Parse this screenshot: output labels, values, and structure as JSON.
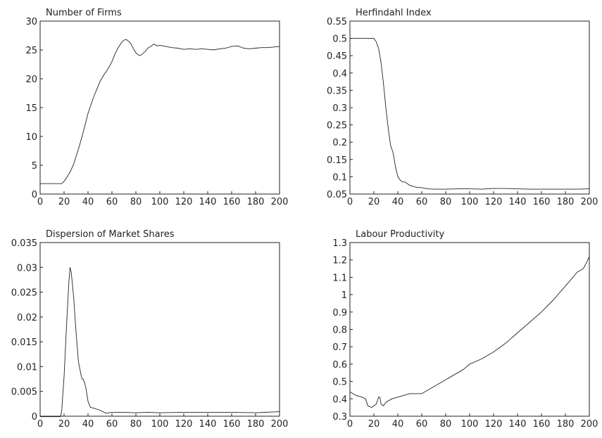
{
  "chart_data": [
    {
      "type": "line",
      "title": "Number of Firms",
      "xlabel": "",
      "ylabel": "",
      "xlim": [
        0,
        200
      ],
      "ylim": [
        0,
        30
      ],
      "xticks": [
        0,
        20,
        40,
        60,
        80,
        100,
        120,
        140,
        160,
        180,
        200
      ],
      "xtick_labels": [
        "0",
        "20",
        "40",
        "60",
        "80",
        "100",
        "120",
        "140",
        "160",
        "180",
        "200"
      ],
      "yticks": [
        0,
        5,
        10,
        15,
        20,
        25,
        30
      ],
      "ytick_labels": [
        "0",
        "5",
        "10",
        "15",
        "20",
        "25",
        "30"
      ],
      "grid": false,
      "series": [
        {
          "x": [
            0,
            5,
            10,
            15,
            18,
            20,
            22,
            25,
            28,
            30,
            33,
            35,
            38,
            40,
            43,
            45,
            48,
            50,
            53,
            55,
            58,
            60,
            63,
            65,
            68,
            70,
            72,
            74,
            76,
            78,
            80,
            83,
            85,
            88,
            90,
            93,
            95,
            98,
            100,
            105,
            110,
            115,
            120,
            125,
            130,
            135,
            140,
            145,
            150,
            155,
            160,
            165,
            170,
            175,
            180,
            185,
            190,
            195,
            200
          ],
          "y": [
            1.8,
            1.8,
            1.8,
            1.8,
            1.8,
            2.2,
            2.8,
            3.8,
            5.2,
            6.5,
            8.5,
            10,
            12.3,
            14,
            15.8,
            17,
            18.5,
            19.5,
            20.6,
            21.2,
            22.2,
            23,
            24.5,
            25.3,
            26.3,
            26.7,
            26.8,
            26.5,
            26,
            25.2,
            24.5,
            24,
            24.2,
            24.8,
            25.3,
            25.7,
            26,
            25.7,
            25.8,
            25.6,
            25.4,
            25.3,
            25.1,
            25.2,
            25.1,
            25.2,
            25.1,
            25,
            25.2,
            25.3,
            25.6,
            25.7,
            25.3,
            25.2,
            25.3,
            25.4,
            25.4,
            25.5,
            25.6
          ]
        }
      ]
    },
    {
      "type": "line",
      "title": "Herfindahl Index",
      "xlabel": "",
      "ylabel": "",
      "xlim": [
        0,
        200
      ],
      "ylim": [
        0.05,
        0.55
      ],
      "xticks": [
        0,
        20,
        40,
        60,
        80,
        100,
        120,
        140,
        160,
        180,
        200
      ],
      "xtick_labels": [
        "0",
        "20",
        "40",
        "60",
        "80",
        "100",
        "120",
        "140",
        "160",
        "180",
        "200"
      ],
      "yticks": [
        0.05,
        0.1,
        0.15,
        0.2,
        0.25,
        0.3,
        0.35,
        0.4,
        0.45,
        0.5,
        0.55
      ],
      "ytick_labels": [
        "0.05",
        "0.1",
        "0.15",
        "0.2",
        "0.25",
        "0.3",
        "0.35",
        "0.4",
        "0.45",
        "0.5",
        "0.55"
      ],
      "grid": false,
      "series": [
        {
          "x": [
            0,
            5,
            10,
            15,
            18,
            20,
            22,
            24,
            26,
            28,
            30,
            32,
            34,
            36,
            38,
            40,
            42,
            44,
            46,
            48,
            50,
            55,
            60,
            65,
            70,
            80,
            90,
            100,
            110,
            120,
            130,
            140,
            150,
            160,
            170,
            180,
            190,
            200
          ],
          "y": [
            0.5,
            0.5,
            0.5,
            0.5,
            0.5,
            0.5,
            0.49,
            0.47,
            0.43,
            0.37,
            0.3,
            0.24,
            0.19,
            0.17,
            0.13,
            0.1,
            0.09,
            0.085,
            0.085,
            0.08,
            0.075,
            0.07,
            0.068,
            0.065,
            0.064,
            0.064,
            0.065,
            0.065,
            0.064,
            0.066,
            0.066,
            0.065,
            0.064,
            0.064,
            0.064,
            0.064,
            0.064,
            0.065
          ]
        }
      ]
    },
    {
      "type": "line",
      "title": "Dispersion of Market Shares",
      "xlabel": "",
      "ylabel": "",
      "xlim": [
        0,
        200
      ],
      "ylim": [
        0,
        0.035
      ],
      "xticks": [
        0,
        20,
        40,
        60,
        80,
        100,
        120,
        140,
        160,
        180,
        200
      ],
      "xtick_labels": [
        "0",
        "20",
        "40",
        "60",
        "80",
        "100",
        "120",
        "140",
        "160",
        "180",
        "200"
      ],
      "yticks": [
        0,
        0.005,
        0.01,
        0.015,
        0.02,
        0.025,
        0.03,
        0.035
      ],
      "ytick_labels": [
        "0",
        "0.005",
        "0.01",
        "0.015",
        "0.02",
        "0.025",
        "0.03",
        "0.035"
      ],
      "grid": false,
      "series": [
        {
          "x": [
            0,
            5,
            10,
            15,
            17,
            18,
            20,
            22,
            24,
            25,
            26,
            28,
            30,
            32,
            34,
            35,
            36,
            38,
            40,
            42,
            45,
            50,
            55,
            60,
            70,
            80,
            90,
            100,
            120,
            140,
            160,
            180,
            200
          ],
          "y": [
            -0.0001,
            -0.0001,
            -0.0001,
            -0.0001,
            -0.0001,
            0.001,
            0.008,
            0.018,
            0.027,
            0.03,
            0.029,
            0.024,
            0.017,
            0.011,
            0.0085,
            0.0075,
            0.0075,
            0.006,
            0.003,
            0.0018,
            0.0016,
            0.0012,
            0.0006,
            0.0008,
            0.0008,
            0.0007,
            0.0008,
            0.0007,
            0.0008,
            0.0008,
            0.0008,
            0.0007,
            0.0009
          ]
        }
      ]
    },
    {
      "type": "line",
      "title": "Labour Productivity",
      "xlabel": "",
      "ylabel": "",
      "xlim": [
        0,
        200
      ],
      "ylim": [
        0.3,
        1.3
      ],
      "xticks": [
        0,
        20,
        40,
        60,
        80,
        100,
        120,
        140,
        160,
        180,
        200
      ],
      "xtick_labels": [
        "0",
        "20",
        "40",
        "60",
        "80",
        "100",
        "120",
        "140",
        "160",
        "180",
        "200"
      ],
      "yticks": [
        0.3,
        0.4,
        0.5,
        0.6,
        0.7,
        0.8,
        0.9,
        1,
        1.1,
        1.2,
        1.3
      ],
      "ytick_labels": [
        "0.3",
        "0.4",
        "0.5",
        "0.6",
        "0.7",
        "0.8",
        "0.9",
        "1",
        "1.1",
        "1.2",
        "1.3"
      ],
      "grid": false,
      "series": [
        {
          "x": [
            0,
            5,
            10,
            13,
            15,
            18,
            20,
            22,
            24,
            25,
            26,
            28,
            30,
            35,
            40,
            45,
            50,
            55,
            60,
            65,
            70,
            75,
            80,
            85,
            90,
            95,
            100,
            110,
            120,
            130,
            140,
            150,
            160,
            170,
            180,
            185,
            190,
            195,
            198,
            200
          ],
          "y": [
            0.44,
            0.42,
            0.41,
            0.4,
            0.36,
            0.35,
            0.36,
            0.37,
            0.41,
            0.41,
            0.37,
            0.36,
            0.38,
            0.4,
            0.41,
            0.42,
            0.43,
            0.43,
            0.43,
            0.45,
            0.47,
            0.49,
            0.51,
            0.53,
            0.55,
            0.57,
            0.6,
            0.63,
            0.67,
            0.72,
            0.78,
            0.84,
            0.9,
            0.97,
            1.05,
            1.09,
            1.13,
            1.15,
            1.19,
            1.22
          ]
        }
      ]
    }
  ]
}
